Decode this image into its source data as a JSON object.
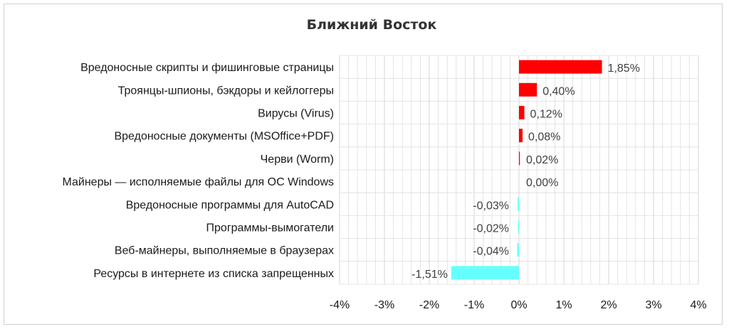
{
  "chart_data": {
    "type": "bar",
    "orientation": "horizontal",
    "title": "Ближний Восток",
    "categories": [
      "Вредоносные скрипты и фишинговые страницы",
      "Троянцы-шпионы, бэкдоры и кейлоггеры",
      "Вирусы (Virus)",
      "Вредоносные документы (MSOffice+PDF)",
      "Черви (Worm)",
      "Майнеры — исполняемые файлы для ОС Windows",
      "Вредоносные программы для AutoCAD",
      "Программы-вымогатели",
      "Веб-майнеры, выполняемые в браузерах",
      "Ресурсы в интернете из списка запрещенных"
    ],
    "values": [
      1.85,
      0.4,
      0.12,
      0.08,
      0.02,
      0.0,
      -0.03,
      -0.02,
      -0.04,
      -1.51
    ],
    "value_labels": [
      "1,85%",
      "0,40%",
      "0,12%",
      "0,08%",
      "0,02%",
      "0,00%",
      "-0,03%",
      "-0,02%",
      "-0,04%",
      "-1,51%"
    ],
    "xlim": [
      -4,
      4
    ],
    "xticks": [
      -4,
      -3,
      -2,
      -1,
      0,
      1,
      2,
      3,
      4
    ],
    "xtick_labels": [
      "-4%",
      "-3%",
      "-2%",
      "-1%",
      "0%",
      "1%",
      "2%",
      "3%",
      "4%"
    ],
    "minor_divisions": 5,
    "grid": true,
    "positive_color": "#ff0000",
    "negative_color": "#66ffff",
    "grid_color": "#e4e4e4",
    "xlabel": "",
    "ylabel": ""
  }
}
